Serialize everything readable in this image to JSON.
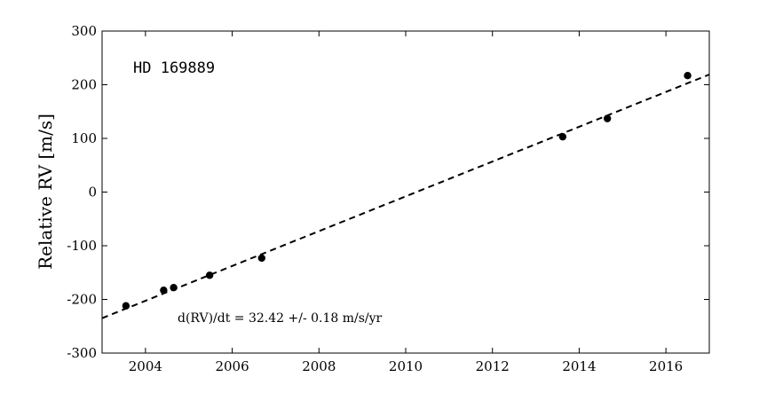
{
  "chart_data": {
    "type": "scatter",
    "title": "",
    "xlabel": "",
    "ylabel": "Relative RV [m/s]",
    "xlim": [
      2003,
      2017
    ],
    "ylim": [
      -300,
      300
    ],
    "x_ticks": [
      2004,
      2006,
      2008,
      2010,
      2012,
      2014,
      2016
    ],
    "y_ticks": [
      -300,
      -200,
      -100,
      0,
      100,
      200,
      300
    ],
    "grid": false,
    "legend": "none",
    "annotations": {
      "star": "HD 169889",
      "fit": "d(RV)/dt = 32.42 +/- 0.18 m/s/yr"
    },
    "series": [
      {
        "kind": "points",
        "marker": "filled-circle",
        "color": "#000000",
        "x": [
          2003.55,
          2004.42,
          2004.65,
          2005.48,
          2006.68,
          2013.62,
          2014.65,
          2016.5
        ],
        "y": [
          -212,
          -183,
          -178,
          -155,
          -123,
          103,
          137,
          217
        ]
      },
      {
        "kind": "fit-line",
        "style": "dashed",
        "color": "#000000",
        "x": [
          2003.0,
          2017.0
        ],
        "y": [
          -235,
          219
        ]
      }
    ]
  }
}
